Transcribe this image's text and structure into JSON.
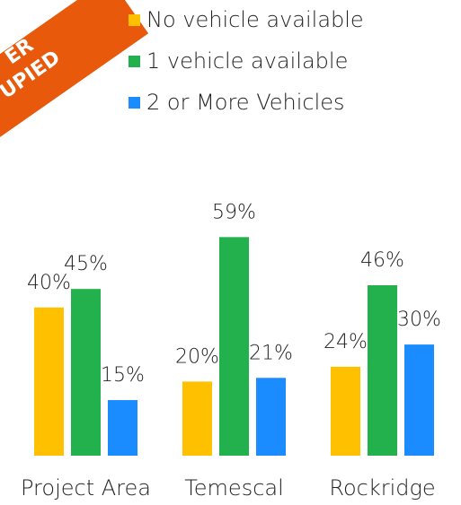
{
  "chart_data": {
    "type": "bar",
    "annotations": [
      "ER",
      "UPIED"
    ],
    "categories": [
      "Project Area",
      "Temescal",
      "Rockridge"
    ],
    "series": [
      {
        "name": "No vehicle available",
        "color": "#ffc000",
        "values": [
          40,
          20,
          24
        ],
        "value_labels": [
          "40%",
          "20%",
          "24%"
        ]
      },
      {
        "name": "1 vehicle available",
        "color": "#22b14c",
        "values": [
          45,
          59,
          46
        ],
        "value_labels": [
          "45%",
          "59%",
          "46%"
        ]
      },
      {
        "name": "2 or More Vehicles",
        "color": "#1a8cff",
        "values": [
          15,
          21,
          30
        ],
        "value_labels": [
          "15%",
          "21%",
          "30%"
        ]
      }
    ]
  }
}
